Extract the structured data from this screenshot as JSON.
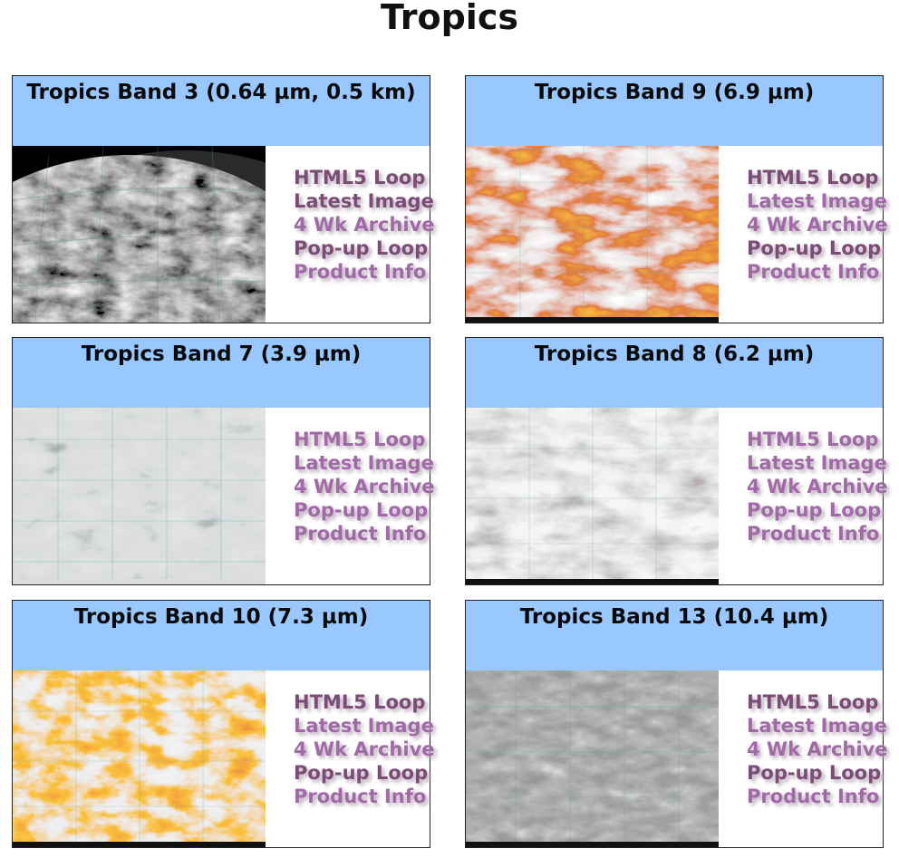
{
  "page": {
    "title": "Tropics"
  },
  "link_colors": {
    "dark": "#7b4c76",
    "light": "#a06aa6"
  },
  "panels": [
    {
      "title": "Tropics Band 3 (0.64 µm, 0.5 km)",
      "image_style": "visible-grayscale",
      "links": [
        {
          "label": "HTML5 Loop",
          "tone": "dark"
        },
        {
          "label": "Latest Image",
          "tone": "dark"
        },
        {
          "label": "4 Wk Archive",
          "tone": "light"
        },
        {
          "label": "Pop-up Loop",
          "tone": "dark"
        },
        {
          "label": "Product Info",
          "tone": "light"
        }
      ]
    },
    {
      "title": "Tropics Band 9 (6.9 µm)",
      "image_style": "water-vapor-orange",
      "links": [
        {
          "label": "HTML5 Loop",
          "tone": "dark"
        },
        {
          "label": "Latest Image",
          "tone": "light"
        },
        {
          "label": "4 Wk Archive",
          "tone": "light"
        },
        {
          "label": "Pop-up Loop",
          "tone": "dark"
        },
        {
          "label": "Product Info",
          "tone": "light"
        }
      ]
    },
    {
      "title": "Tropics Band 7 (3.9 µm)",
      "image_style": "shortwave-ir-gray",
      "links": [
        {
          "label": "HTML5 Loop",
          "tone": "light"
        },
        {
          "label": "Latest Image",
          "tone": "light"
        },
        {
          "label": "4 Wk Archive",
          "tone": "light"
        },
        {
          "label": "Pop-up Loop",
          "tone": "light"
        },
        {
          "label": "Product Info",
          "tone": "light"
        }
      ]
    },
    {
      "title": "Tropics Band 8 (6.2 µm)",
      "image_style": "water-vapor-gray",
      "links": [
        {
          "label": "HTML5 Loop",
          "tone": "light"
        },
        {
          "label": "Latest Image",
          "tone": "light"
        },
        {
          "label": "4 Wk Archive",
          "tone": "light"
        },
        {
          "label": "Pop-up Loop",
          "tone": "light"
        },
        {
          "label": "Product Info",
          "tone": "light"
        }
      ]
    },
    {
      "title": "Tropics Band 10 (7.3 µm)",
      "image_style": "water-vapor-red",
      "links": [
        {
          "label": "HTML5 Loop",
          "tone": "dark"
        },
        {
          "label": "Latest Image",
          "tone": "light"
        },
        {
          "label": "4 Wk Archive",
          "tone": "light"
        },
        {
          "label": "Pop-up Loop",
          "tone": "dark"
        },
        {
          "label": "Product Info",
          "tone": "light"
        }
      ]
    },
    {
      "title": "Tropics Band 13 (10.4 µm)",
      "image_style": "longwave-ir-gray",
      "links": [
        {
          "label": "HTML5 Loop",
          "tone": "dark"
        },
        {
          "label": "Latest Image",
          "tone": "light"
        },
        {
          "label": "4 Wk Archive",
          "tone": "light"
        },
        {
          "label": "Pop-up Loop",
          "tone": "dark"
        },
        {
          "label": "Product Info",
          "tone": "light"
        }
      ]
    }
  ]
}
